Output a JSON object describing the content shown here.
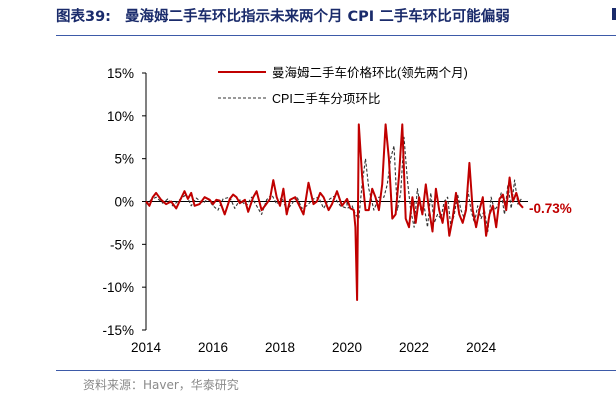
{
  "header": {
    "number": "图表39:",
    "text": "曼海姆二手车环比指示未来两个月 CPI 二手车环比可能偏弱"
  },
  "footer": {
    "source": "资料来源：Haver，华泰研究"
  },
  "colors": {
    "title": "#1a2b6b",
    "manheim": "#c00000",
    "cpi": "#333333",
    "rule": "#3d5aa8"
  },
  "chart_data": {
    "type": "line",
    "ylim": [
      -15,
      15
    ],
    "xlim": [
      2014,
      2025.4
    ],
    "y_ticks": [
      15,
      10,
      5,
      0,
      -5,
      -10,
      -15
    ],
    "y_tick_labels": [
      "15%",
      "10%",
      "5%",
      "0%",
      "-5%",
      "-10%",
      "-15%"
    ],
    "x_ticks": [
      2014,
      2016,
      2018,
      2020,
      2022,
      2024
    ],
    "x_tick_labels": [
      "2014",
      "2016",
      "2018",
      "2020",
      "2022",
      "2024"
    ],
    "grid": false,
    "legend_position": "top-center",
    "annotation": {
      "text": "-0.73%",
      "x": 2025.25,
      "y": -0.73
    },
    "series": [
      {
        "name": "曼海姆二手车价格环比(领先两个月)",
        "style": "solid",
        "x": [
          2014.0,
          2014.1,
          2014.2,
          2014.3,
          2014.45,
          2014.6,
          2014.75,
          2014.9,
          2015.0,
          2015.15,
          2015.25,
          2015.35,
          2015.45,
          2015.6,
          2015.75,
          2015.9,
          2016.0,
          2016.1,
          2016.2,
          2016.35,
          2016.5,
          2016.6,
          2016.7,
          2016.8,
          2016.95,
          2017.05,
          2017.2,
          2017.3,
          2017.45,
          2017.55,
          2017.7,
          2017.8,
          2017.9,
          2018.0,
          2018.1,
          2018.2,
          2018.3,
          2018.45,
          2018.55,
          2018.7,
          2018.85,
          2019.0,
          2019.1,
          2019.2,
          2019.3,
          2019.45,
          2019.55,
          2019.7,
          2019.85,
          2020.0,
          2020.1,
          2020.2,
          2020.25,
          2020.3,
          2020.35,
          2020.45,
          2020.55,
          2020.65,
          2020.75,
          2020.85,
          2020.95,
          2021.05,
          2021.15,
          2021.25,
          2021.35,
          2021.45,
          2021.55,
          2021.65,
          2021.75,
          2021.85,
          2021.95,
          2022.05,
          2022.15,
          2022.25,
          2022.35,
          2022.45,
          2022.55,
          2022.65,
          2022.75,
          2022.85,
          2022.95,
          2023.05,
          2023.15,
          2023.25,
          2023.35,
          2023.45,
          2023.55,
          2023.65,
          2023.75,
          2023.85,
          2023.95,
          2024.05,
          2024.15,
          2024.25,
          2024.35,
          2024.45,
          2024.55,
          2024.65,
          2024.75,
          2024.85,
          2024.95,
          2025.05,
          2025.15,
          2025.25
        ],
        "y": [
          0.0,
          -0.5,
          0.5,
          1.0,
          0.2,
          -0.3,
          0.0,
          -0.8,
          0.0,
          1.2,
          0.3,
          1.0,
          -0.5,
          -0.3,
          0.5,
          0.2,
          -0.3,
          0.2,
          0.1,
          -1.5,
          0.3,
          0.8,
          0.5,
          -0.2,
          0.2,
          -1.2,
          0.5,
          1.2,
          -1.0,
          -0.5,
          0.3,
          2.5,
          0.5,
          -0.5,
          1.5,
          -1.5,
          0.2,
          0.5,
          -0.3,
          -1.5,
          2.2,
          -0.3,
          0.0,
          1.0,
          0.5,
          -1.0,
          -0.3,
          1.2,
          -0.5,
          0.3,
          -0.8,
          -1.0,
          -3.0,
          -11.5,
          9.0,
          3.0,
          -1.0,
          -1.0,
          1.5,
          0.5,
          -1.0,
          2.0,
          9.0,
          5.0,
          -2.0,
          -1.5,
          3.0,
          9.0,
          -2.0,
          -3.0,
          0.5,
          -2.5,
          0.5,
          -1.5,
          2.0,
          -1.0,
          -3.5,
          1.5,
          -1.0,
          -2.5,
          0.0,
          -4.0,
          -2.0,
          1.0,
          -1.5,
          -2.5,
          -1.0,
          4.5,
          -1.0,
          -3.0,
          -1.0,
          0.5,
          -4.0,
          -1.5,
          -0.5,
          -3.0,
          0.3,
          0.8,
          -1.0,
          2.8,
          0.0,
          1.0,
          -0.3,
          -0.73
        ]
      },
      {
        "name": "CPI二手车分项环比",
        "style": "dashed",
        "x": [
          2014.0,
          2014.15,
          2014.3,
          2014.5,
          2014.65,
          2014.8,
          2015.0,
          2015.2,
          2015.35,
          2015.5,
          2015.7,
          2015.85,
          2016.0,
          2016.15,
          2016.3,
          2016.5,
          2016.65,
          2016.8,
          2017.0,
          2017.15,
          2017.3,
          2017.45,
          2017.6,
          2017.75,
          2017.9,
          2018.05,
          2018.2,
          2018.35,
          2018.5,
          2018.65,
          2018.8,
          2019.0,
          2019.15,
          2019.3,
          2019.45,
          2019.6,
          2019.8,
          2020.0,
          2020.15,
          2020.25,
          2020.35,
          2020.45,
          2020.55,
          2020.65,
          2020.8,
          2020.95,
          2021.1,
          2021.2,
          2021.3,
          2021.4,
          2021.5,
          2021.6,
          2021.7,
          2021.8,
          2021.9,
          2022.0,
          2022.1,
          2022.2,
          2022.3,
          2022.4,
          2022.5,
          2022.6,
          2022.7,
          2022.8,
          2022.9,
          2023.0,
          2023.1,
          2023.2,
          2023.3,
          2023.4,
          2023.5,
          2023.6,
          2023.7,
          2023.8,
          2023.9,
          2024.0,
          2024.1,
          2024.2,
          2024.3,
          2024.4,
          2024.5,
          2024.6,
          2024.7,
          2024.8,
          2024.9,
          2025.0,
          2025.1,
          2025.2
        ],
        "y": [
          -0.3,
          0.2,
          0.5,
          -0.2,
          0.3,
          -0.5,
          0.2,
          0.8,
          -0.5,
          0.4,
          -0.2,
          0.3,
          -0.5,
          -1.0,
          0.3,
          0.5,
          -0.8,
          0.2,
          -0.5,
          0.5,
          -0.5,
          -1.5,
          0.2,
          0.8,
          -0.3,
          0.5,
          -1.0,
          -0.3,
          0.6,
          -0.8,
          -0.5,
          0.3,
          0.5,
          -0.8,
          0.2,
          0.6,
          -0.5,
          -0.8,
          -0.5,
          -1.5,
          -2.0,
          2.0,
          5.0,
          1.5,
          -1.0,
          0.5,
          0.5,
          2.0,
          5.0,
          6.5,
          -1.0,
          1.0,
          7.5,
          2.5,
          -1.0,
          -3.0,
          1.5,
          -1.0,
          -0.5,
          -3.0,
          1.0,
          -2.5,
          -1.5,
          -2.0,
          0.0,
          0.5,
          -3.0,
          -1.5,
          0.8,
          -1.0,
          -2.0,
          1.5,
          -1.0,
          -2.5,
          -0.5,
          -2.0,
          -1.0,
          -3.5,
          0.5,
          -1.0,
          -0.5,
          1.0,
          -1.5,
          2.0,
          -0.8,
          2.5,
          -0.3,
          0.3
        ]
      }
    ]
  }
}
